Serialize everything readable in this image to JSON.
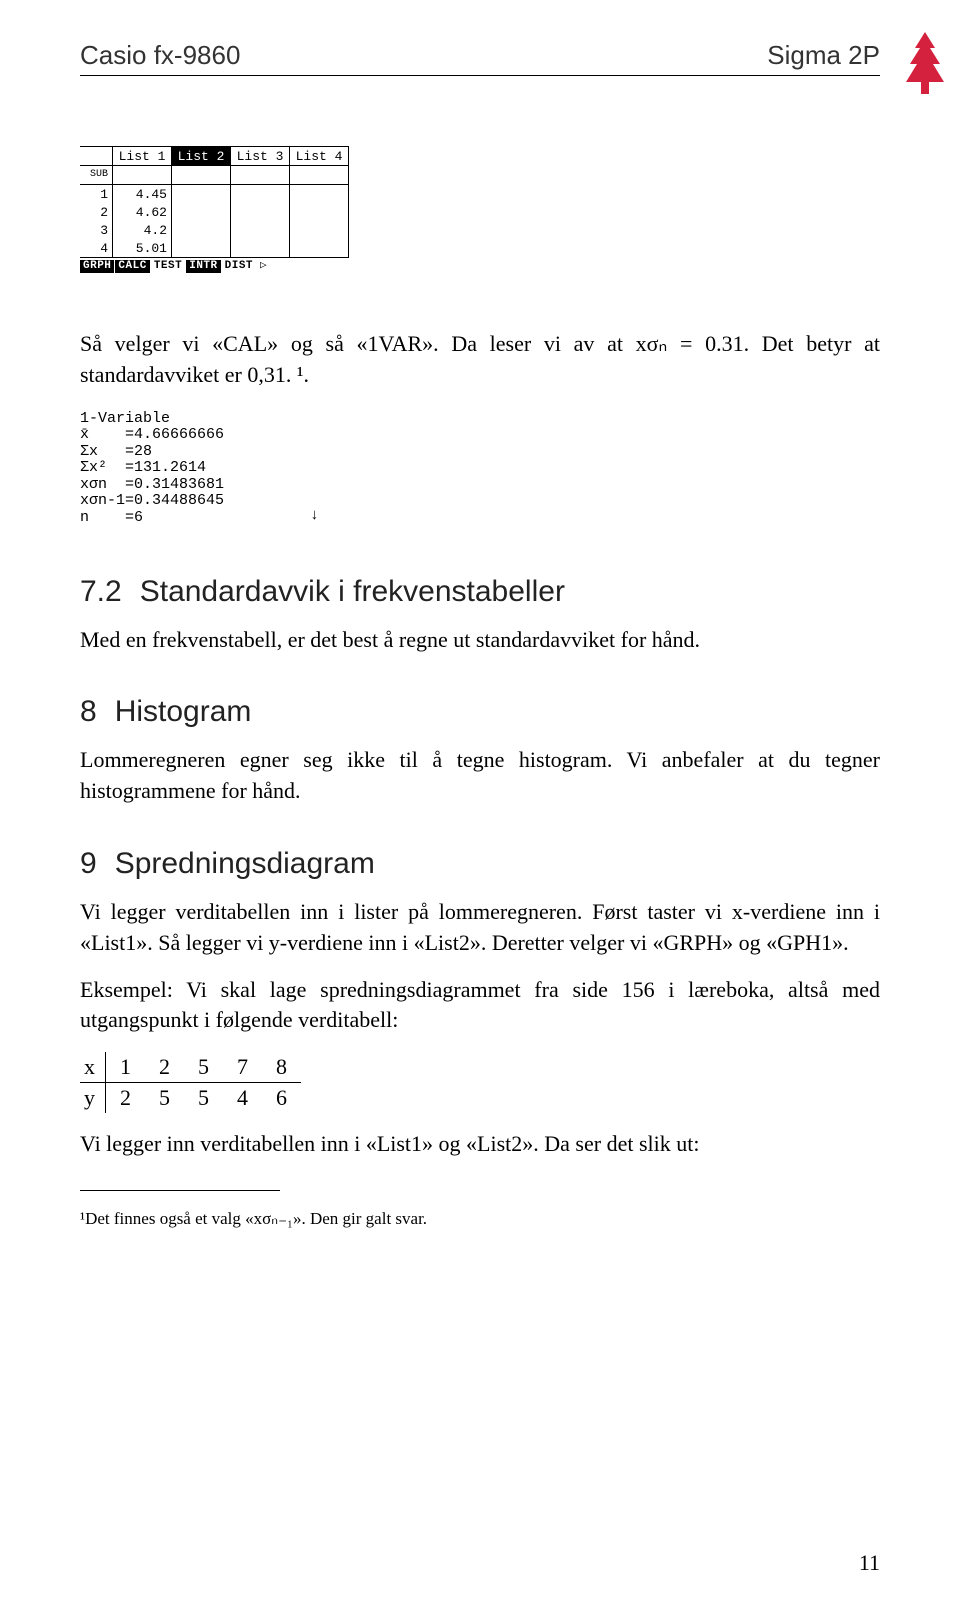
{
  "header": {
    "left": "Casio fx-9860",
    "right": "Sigma 2P"
  },
  "tree_color": "#d4213d",
  "calc_screen1": {
    "headers": [
      "",
      "List 1",
      "List 2",
      "List 3",
      "List 4"
    ],
    "selected_header_index": 2,
    "sub_label": "SUB",
    "rows": [
      [
        "1",
        "4.45",
        "",
        "",
        ""
      ],
      [
        "2",
        "4.62",
        "",
        "",
        ""
      ],
      [
        "3",
        "4.2",
        "",
        "",
        ""
      ],
      [
        "4",
        "5.01",
        "",
        "",
        ""
      ]
    ],
    "menu": [
      {
        "label": "GRPH",
        "inv": true
      },
      {
        "label": "CALC",
        "inv": true
      },
      {
        "label": "TEST",
        "inv": false
      },
      {
        "label": "INTR",
        "inv": true
      },
      {
        "label": "DIST",
        "inv": false
      },
      {
        "label": "▷",
        "inv": false
      }
    ]
  },
  "para1": "Så velger vi «CAL» og så «1VAR». Da leser vi av at xσₙ = 0.31. Det betyr at standardavviket er 0,31. ¹.",
  "calc_output": {
    "lines": [
      "1-Variable",
      "x̄    =4.66666666",
      "Σx   =28",
      "Σx²  =131.2614",
      "xσn  =0.31483681",
      "xσn-1=0.34488645",
      "n    =6"
    ],
    "arrow": "↓"
  },
  "sec72": {
    "num": "7.2",
    "title": "Standardavvik i frekvenstabeller",
    "body": "Med en frekvenstabell, er det best å regne ut standardavviket for hånd."
  },
  "sec8": {
    "num": "8",
    "title": "Histogram",
    "body": "Lommeregneren egner seg ikke til å tegne histogram. Vi anbefaler at du tegner histogrammene for hånd."
  },
  "sec9": {
    "num": "9",
    "title": "Spredningsdiagram",
    "body1": "Vi legger verditabellen inn i lister på lommeregneren. Først taster vi x-verdiene inn i «List1». Så legger vi y-verdiene inn i «List2». Deretter velger vi «GRPH» og «GPH1».",
    "body2": "Eksempel: Vi skal lage spredningsdiagrammet fra side 156 i læreboka, altså med utgangspunkt i følgende verditabell:",
    "table": {
      "row_x": [
        "x",
        "1",
        "2",
        "5",
        "7",
        "8"
      ],
      "row_y": [
        "y",
        "2",
        "5",
        "5",
        "4",
        "6"
      ]
    },
    "body3": "Vi legger inn verditabellen inn i «List1» og «List2». Da ser det slik ut:"
  },
  "footnote": "¹Det finnes også et valg «xσₙ₋₁». Den gir galt svar.",
  "page_number": "11"
}
